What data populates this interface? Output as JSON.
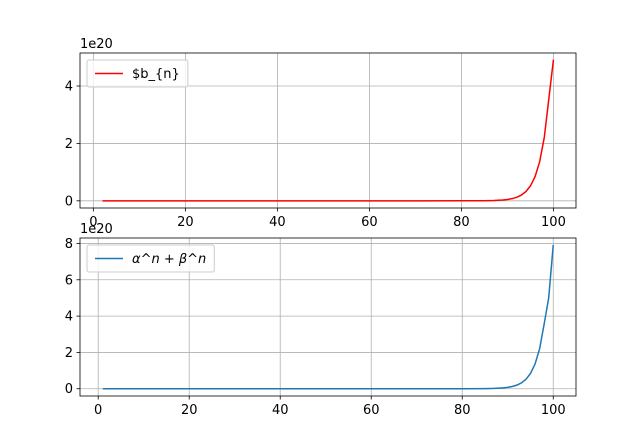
{
  "chart_data": [
    {
      "type": "line",
      "x_range": [
        2,
        100
      ],
      "xlim": [
        -2.9,
        104.9
      ],
      "ylim": [
        -0.25,
        5.15
      ],
      "y_scale_label": "1e20",
      "x_ticks": [
        0,
        20,
        40,
        60,
        80,
        100
      ],
      "y_ticks": [
        0,
        2,
        4
      ],
      "grid": true,
      "legend_position": "upper left",
      "series": [
        {
          "name": "$b_{n}",
          "color": "#ff0000",
          "x": [
            2,
            10,
            20,
            30,
            40,
            50,
            60,
            70,
            80,
            85,
            87,
            89,
            90,
            91,
            92,
            93,
            94,
            95,
            96,
            97,
            98,
            99,
            100
          ],
          "values": [
            0,
            0,
            0,
            0,
            0,
            0,
            0,
            0,
            0.0004,
            0.0042,
            0.011,
            0.029,
            0.047,
            0.075,
            0.122,
            0.198,
            0.32,
            0.52,
            0.84,
            1.36,
            2.2,
            3.56,
            4.92
          ]
        }
      ]
    },
    {
      "type": "line",
      "x_range": [
        1,
        100
      ],
      "xlim": [
        -4.0,
        105.0
      ],
      "ylim": [
        -0.4,
        8.3
      ],
      "y_scale_label": "1e20",
      "x_ticks": [
        0,
        20,
        40,
        60,
        80,
        100
      ],
      "y_ticks": [
        0,
        2,
        4,
        6,
        8
      ],
      "grid": true,
      "legend_position": "upper left",
      "series": [
        {
          "name": "α^n + β^n",
          "color": "#1f77b4",
          "x": [
            1,
            10,
            20,
            30,
            40,
            50,
            60,
            70,
            80,
            85,
            87,
            89,
            90,
            91,
            92,
            93,
            94,
            95,
            96,
            97,
            98,
            99,
            100
          ],
          "values": [
            0,
            0,
            0,
            0,
            0,
            0,
            0,
            0,
            0.0006,
            0.0068,
            0.018,
            0.047,
            0.076,
            0.122,
            0.198,
            0.32,
            0.52,
            0.84,
            1.36,
            2.2,
            3.56,
            5.0,
            7.92
          ]
        }
      ]
    }
  ]
}
